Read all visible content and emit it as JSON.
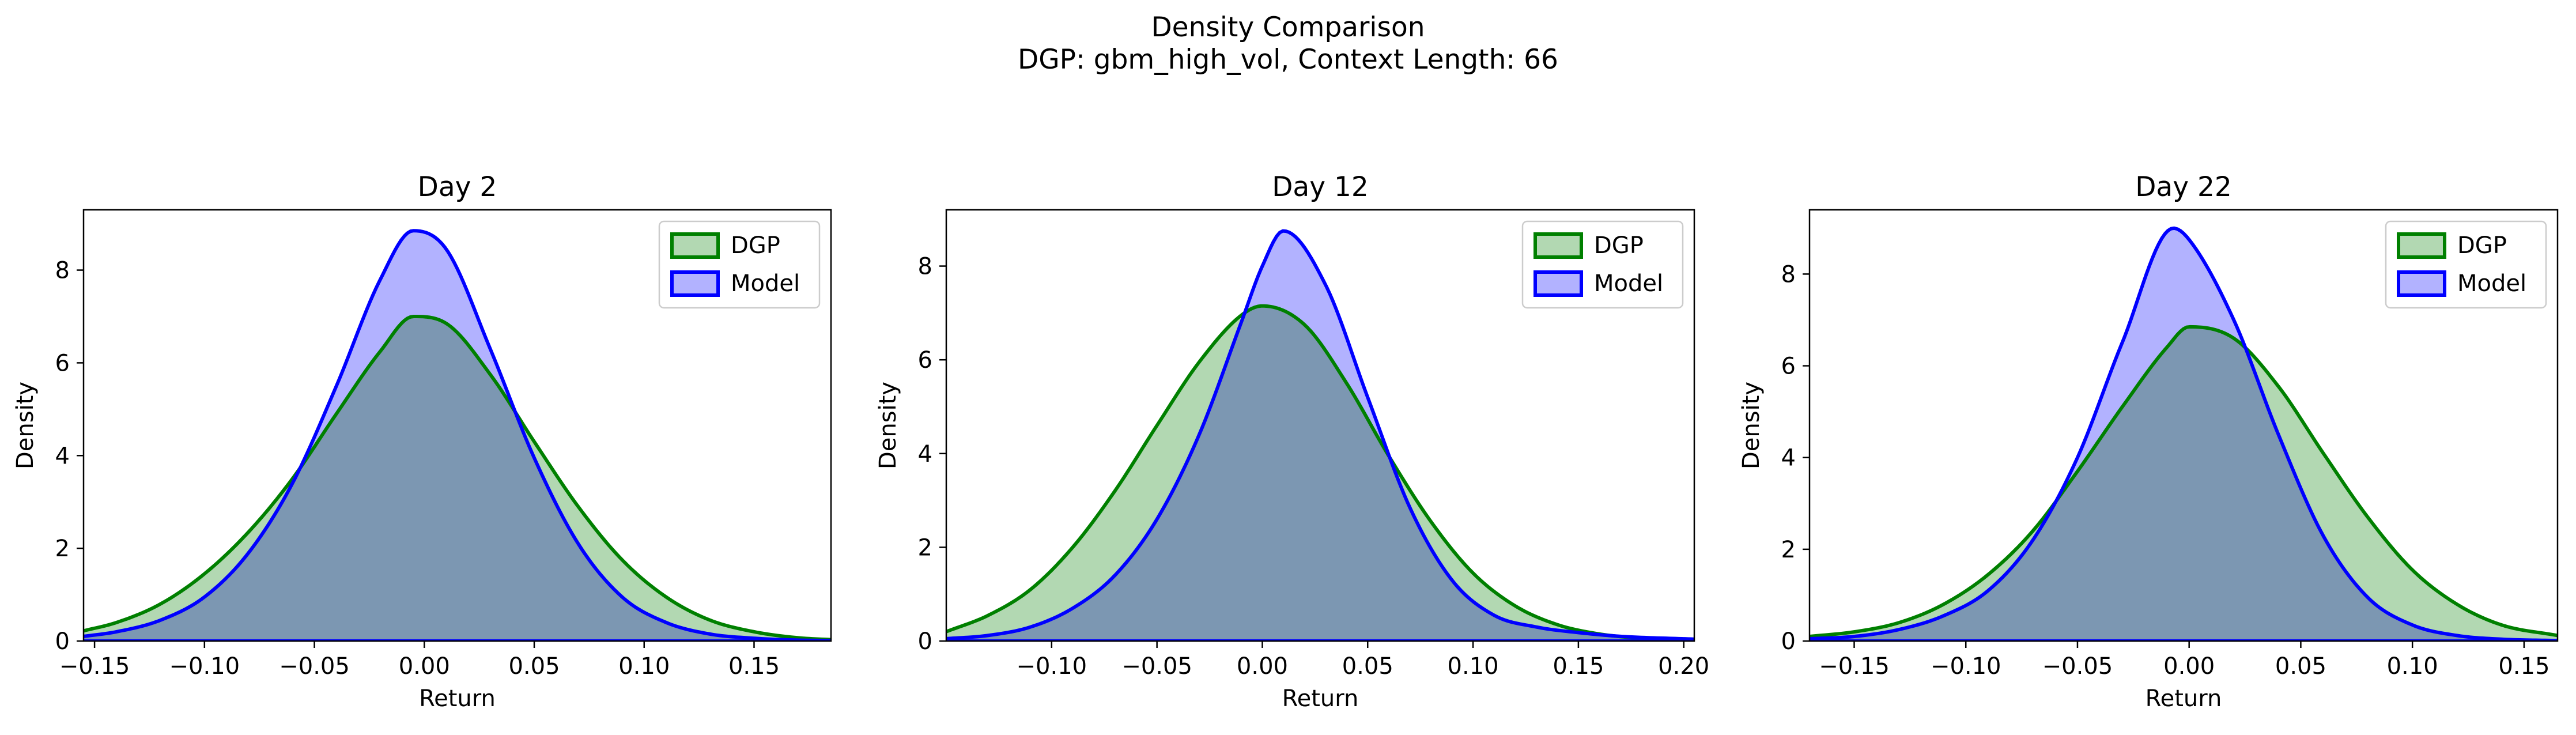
{
  "figure": {
    "title_line1": "Density Comparison",
    "title_line2": "DGP: gbm_high_vol, Context Length: 66"
  },
  "colors": {
    "dgp_line": "#008000",
    "dgp_fill": "#b2d8b2",
    "model_line": "#0000ff",
    "model_fill": "#b2b2ff",
    "overlap_fill": "#7f99c8"
  },
  "chart_data": [
    {
      "type": "area",
      "title": "Day 2",
      "xlabel": "Return",
      "ylabel": "Density",
      "xlim": [
        -0.155,
        0.185
      ],
      "ylim": [
        0,
        9.3
      ],
      "xticks": [
        -0.15,
        -0.1,
        -0.05,
        0.0,
        0.05,
        0.1,
        0.15
      ],
      "xtick_labels": [
        "−0.15",
        "−0.10",
        "−0.05",
        "0.00",
        "0.05",
        "0.10",
        "0.15"
      ],
      "yticks": [
        0,
        2,
        4,
        6,
        8
      ],
      "ytick_labels": [
        "0",
        "2",
        "4",
        "6",
        "8"
      ],
      "legend": {
        "position": "top-right",
        "entries": [
          "DGP",
          "Model"
        ]
      },
      "grid": false,
      "series": [
        {
          "name": "DGP",
          "color": "#008000",
          "x": [
            -0.155,
            -0.14,
            -0.12,
            -0.1,
            -0.08,
            -0.06,
            -0.04,
            -0.02,
            -0.005,
            0.01,
            0.03,
            0.05,
            0.07,
            0.09,
            0.11,
            0.13,
            0.15,
            0.17,
            0.185
          ],
          "y": [
            0.22,
            0.4,
            0.8,
            1.45,
            2.35,
            3.5,
            4.9,
            6.25,
            7.0,
            6.85,
            5.75,
            4.3,
            2.9,
            1.75,
            0.95,
            0.45,
            0.2,
            0.07,
            0.03
          ]
        },
        {
          "name": "Model",
          "color": "#0000ff",
          "x": [
            -0.155,
            -0.14,
            -0.12,
            -0.1,
            -0.08,
            -0.06,
            -0.04,
            -0.02,
            -0.005,
            0.01,
            0.03,
            0.05,
            0.07,
            0.09,
            0.11,
            0.13,
            0.15,
            0.17,
            0.185
          ],
          "y": [
            0.1,
            0.2,
            0.45,
            0.95,
            1.9,
            3.4,
            5.5,
            7.8,
            8.85,
            8.45,
            6.3,
            3.95,
            2.1,
            0.95,
            0.4,
            0.15,
            0.06,
            0.02,
            0.01
          ]
        }
      ]
    },
    {
      "type": "area",
      "title": "Day 12",
      "xlabel": "Return",
      "ylabel": "Density",
      "xlim": [
        -0.15,
        0.205
      ],
      "ylim": [
        0,
        9.2
      ],
      "xticks": [
        -0.1,
        -0.05,
        0.0,
        0.05,
        0.1,
        0.15,
        0.2
      ],
      "xtick_labels": [
        "−0.10",
        "−0.05",
        "0.00",
        "0.05",
        "0.10",
        "0.15",
        "0.20"
      ],
      "yticks": [
        0,
        2,
        4,
        6,
        8
      ],
      "ytick_labels": [
        "0",
        "2",
        "4",
        "6",
        "8"
      ],
      "legend": {
        "position": "top-right",
        "entries": [
          "DGP",
          "Model"
        ]
      },
      "grid": false,
      "series": [
        {
          "name": "DGP",
          "color": "#008000",
          "x": [
            -0.15,
            -0.13,
            -0.11,
            -0.09,
            -0.07,
            -0.05,
            -0.03,
            -0.01,
            0.0,
            0.02,
            0.04,
            0.06,
            0.08,
            0.1,
            0.12,
            0.14,
            0.16,
            0.18,
            0.205
          ],
          "y": [
            0.2,
            0.55,
            1.1,
            2.0,
            3.2,
            4.6,
            5.95,
            6.95,
            7.15,
            6.75,
            5.5,
            3.95,
            2.55,
            1.45,
            0.75,
            0.35,
            0.15,
            0.06,
            0.02
          ]
        },
        {
          "name": "Model",
          "color": "#0000ff",
          "x": [
            -0.15,
            -0.13,
            -0.11,
            -0.09,
            -0.07,
            -0.05,
            -0.03,
            -0.01,
            0.0,
            0.01,
            0.03,
            0.05,
            0.07,
            0.09,
            0.11,
            0.13,
            0.15,
            0.17,
            0.205
          ],
          "y": [
            0.05,
            0.12,
            0.3,
            0.7,
            1.4,
            2.6,
            4.4,
            6.8,
            8.0,
            8.75,
            7.6,
            5.2,
            2.85,
            1.3,
            0.55,
            0.3,
            0.18,
            0.1,
            0.04
          ]
        }
      ]
    },
    {
      "type": "area",
      "title": "Day 22",
      "xlabel": "Return",
      "ylabel": "Density",
      "xlim": [
        -0.17,
        0.165
      ],
      "ylim": [
        0,
        9.4
      ],
      "xticks": [
        -0.15,
        -0.1,
        -0.05,
        0.0,
        0.05,
        0.1,
        0.15
      ],
      "xtick_labels": [
        "−0.15",
        "−0.10",
        "−0.05",
        "0.00",
        "0.05",
        "0.10",
        "0.15"
      ],
      "yticks": [
        0,
        2,
        4,
        6,
        8
      ],
      "ytick_labels": [
        "0",
        "2",
        "4",
        "6",
        "8"
      ],
      "legend": {
        "position": "top-right",
        "entries": [
          "DGP",
          "Model"
        ]
      },
      "grid": false,
      "series": [
        {
          "name": "DGP",
          "color": "#008000",
          "x": [
            -0.17,
            -0.15,
            -0.13,
            -0.11,
            -0.09,
            -0.07,
            -0.05,
            -0.03,
            -0.01,
            0.0,
            0.02,
            0.04,
            0.06,
            0.08,
            0.1,
            0.12,
            0.14,
            0.165
          ],
          "y": [
            0.1,
            0.2,
            0.4,
            0.8,
            1.45,
            2.4,
            3.7,
            5.1,
            6.4,
            6.85,
            6.6,
            5.55,
            4.1,
            2.7,
            1.55,
            0.8,
            0.35,
            0.12
          ]
        },
        {
          "name": "Model",
          "color": "#0000ff",
          "x": [
            -0.17,
            -0.15,
            -0.13,
            -0.11,
            -0.09,
            -0.07,
            -0.05,
            -0.03,
            -0.007,
            0.0,
            0.02,
            0.04,
            0.06,
            0.08,
            0.1,
            0.12,
            0.14,
            0.165
          ],
          "y": [
            0.05,
            0.1,
            0.25,
            0.55,
            1.1,
            2.2,
            4.0,
            6.5,
            9.0,
            8.75,
            7.0,
            4.5,
            2.3,
            0.95,
            0.35,
            0.12,
            0.04,
            0.01
          ]
        }
      ]
    }
  ]
}
